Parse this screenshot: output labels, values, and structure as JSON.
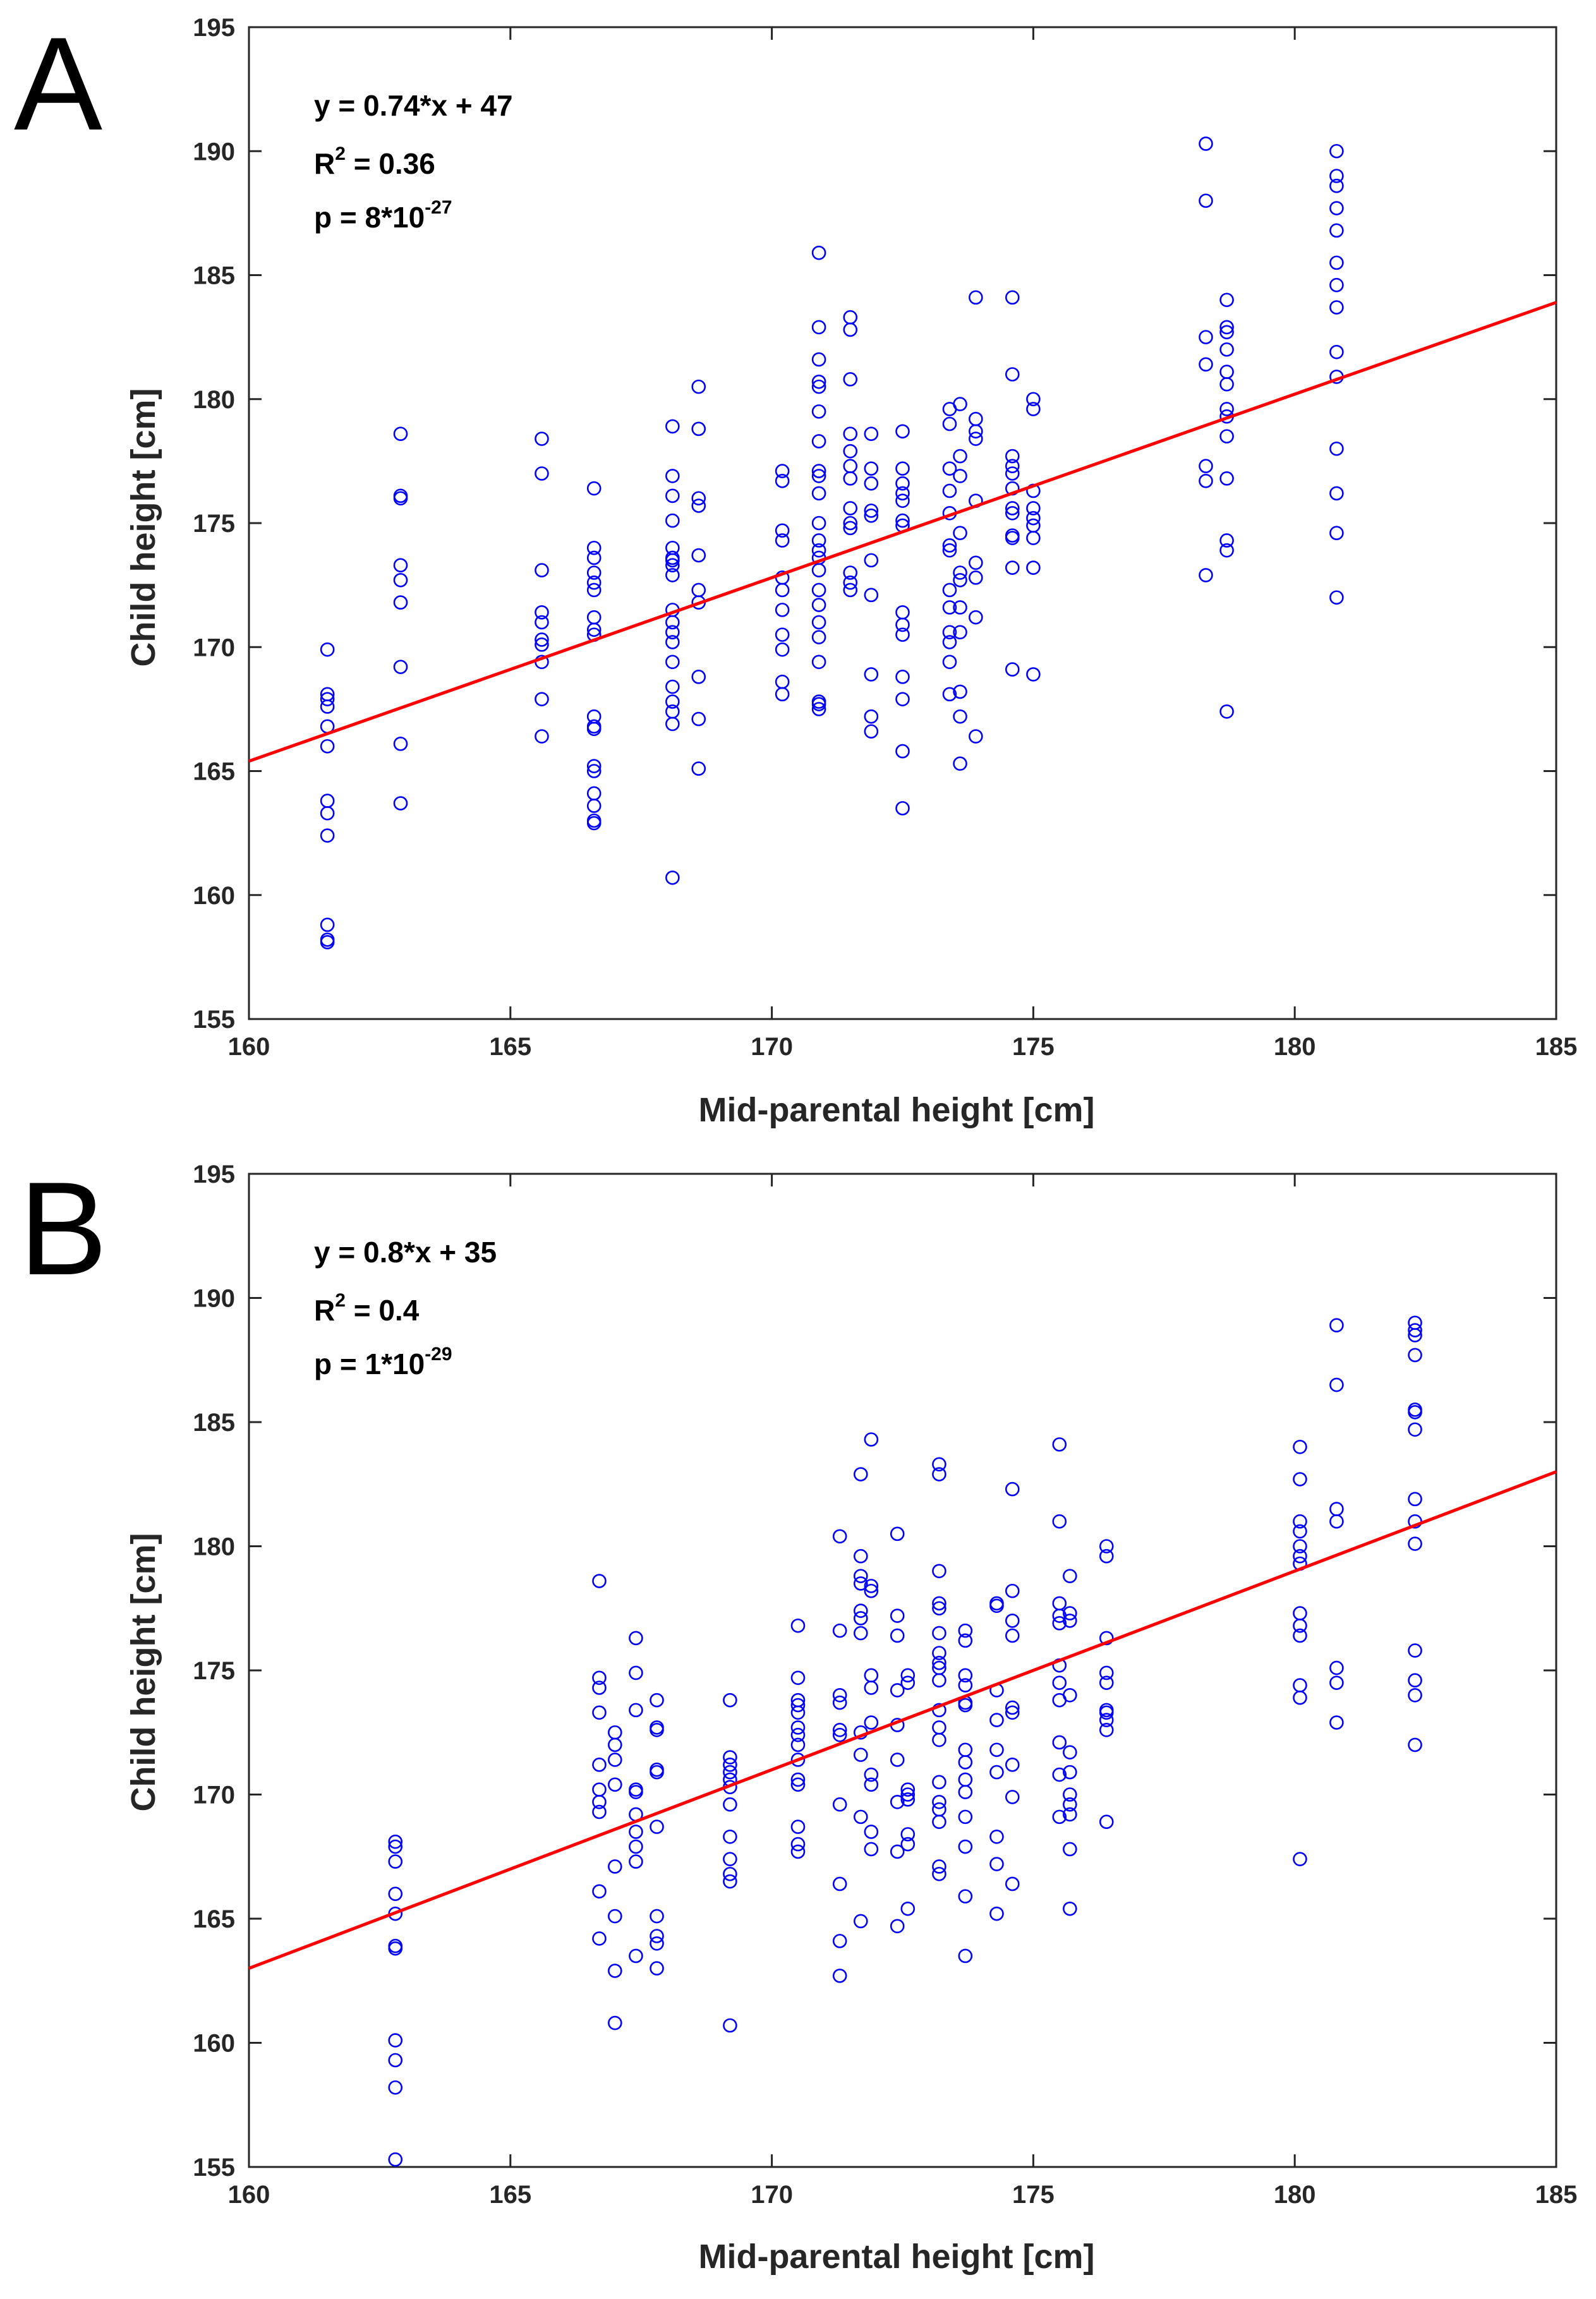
{
  "colors": {
    "points": "#0000ff",
    "fit_line": "#ff0000",
    "axes": "#262626",
    "background": "#ffffff"
  },
  "chart_data": [
    {
      "panel_label": "A",
      "type": "scatter",
      "title": "",
      "xlabel": "Mid-parental height [cm]",
      "ylabel": "Child height [cm]",
      "xlim": [
        160,
        185
      ],
      "ylim": [
        155,
        195
      ],
      "xticks": [
        160,
        165,
        170,
        175,
        180,
        185
      ],
      "yticks": [
        155,
        160,
        165,
        170,
        175,
        180,
        185,
        190,
        195
      ],
      "grid": false,
      "annotations": {
        "equation": "y = 0.74*x + 47",
        "r2_prefix": "R",
        "r2_sup": "2",
        "r2_suffix": " = 0.36",
        "p_prefix": "p =  8*10",
        "p_sup": "-27"
      },
      "fit": {
        "slope": 0.74,
        "intercept": 47
      },
      "series": [
        {
          "x": 161.5,
          "y": [
            169.9,
            168.1,
            167.9,
            167.6,
            166.8,
            166.0,
            163.8,
            163.3,
            162.4,
            158.8,
            158.2,
            158.1
          ]
        },
        {
          "x": 162.9,
          "y": [
            178.6,
            176.1,
            176.0,
            173.3,
            172.7,
            171.8,
            169.2,
            166.1,
            163.7
          ]
        },
        {
          "x": 165.6,
          "y": [
            178.4,
            177.0,
            173.1,
            171.4,
            171.0,
            170.3,
            170.1,
            169.4,
            167.9,
            166.4
          ]
        },
        {
          "x": 166.6,
          "y": [
            176.4,
            174.0,
            173.6,
            173.0,
            172.6,
            172.3,
            171.2,
            170.7,
            170.5,
            167.2,
            166.8,
            166.7,
            165.2,
            165.0,
            164.1,
            163.6,
            163.0,
            162.9
          ]
        },
        {
          "x": 168.1,
          "y": [
            178.9,
            176.9,
            176.1,
            175.1,
            174.0,
            173.6,
            173.5,
            173.3,
            172.9,
            171.5,
            171.0,
            170.6,
            170.2,
            169.4,
            168.4,
            167.8,
            167.4,
            166.9,
            160.7
          ]
        },
        {
          "x": 168.6,
          "y": [
            180.5,
            178.8,
            176.0,
            175.7,
            173.7,
            172.3,
            171.8,
            168.8,
            167.1,
            165.1
          ]
        },
        {
          "x": 170.2,
          "y": [
            177.1,
            176.7,
            174.7,
            174.3,
            172.8,
            172.3,
            171.5,
            170.5,
            169.9,
            168.6,
            168.1
          ]
        },
        {
          "x": 170.9,
          "y": [
            185.9,
            182.9,
            181.6,
            180.7,
            180.5,
            179.5,
            178.3,
            177.1,
            176.9,
            176.2,
            175.0,
            174.3,
            173.9,
            173.6,
            173.1,
            172.3,
            171.7,
            171.0,
            170.4,
            169.4,
            167.8,
            167.7,
            167.5
          ]
        },
        {
          "x": 171.5,
          "y": [
            183.3,
            182.8,
            180.8,
            178.6,
            177.9,
            177.3,
            176.8,
            175.6,
            175.0,
            174.8,
            173.0,
            172.6,
            172.3
          ]
        },
        {
          "x": 171.9,
          "y": [
            178.6,
            177.2,
            176.6,
            175.5,
            175.3,
            173.5,
            172.1,
            168.9,
            167.2,
            166.6
          ]
        },
        {
          "x": 172.5,
          "y": [
            178.7,
            177.2,
            176.6,
            176.2,
            175.9,
            175.1,
            174.9,
            171.4,
            170.9,
            170.5,
            168.8,
            167.9,
            165.8,
            163.5
          ]
        },
        {
          "x": 173.4,
          "y": [
            179.6,
            179.0,
            177.2,
            176.3,
            175.4,
            174.1,
            173.9,
            172.3,
            171.6,
            170.6,
            170.2,
            169.4,
            168.1
          ]
        },
        {
          "x": 173.6,
          "y": [
            179.8,
            177.7,
            176.9,
            174.6,
            173.0,
            172.7,
            171.6,
            170.6,
            168.2,
            167.2,
            165.3
          ]
        },
        {
          "x": 173.9,
          "y": [
            184.1,
            179.2,
            178.7,
            178.4,
            175.9,
            173.4,
            172.8,
            171.2,
            166.4
          ]
        },
        {
          "x": 174.6,
          "y": [
            184.1,
            181.0,
            177.7,
            177.3,
            177.0,
            176.4,
            175.6,
            175.4,
            174.5,
            174.4,
            173.2,
            169.1
          ]
        },
        {
          "x": 175.0,
          "y": [
            180.0,
            179.6,
            176.3,
            175.6,
            175.2,
            174.9,
            174.4,
            173.2,
            168.9
          ]
        },
        {
          "x": 178.3,
          "y": [
            190.3,
            188.0,
            182.5,
            181.4,
            177.3,
            176.7,
            172.9
          ]
        },
        {
          "x": 178.7,
          "y": [
            184.0,
            182.9,
            182.7,
            182.0,
            181.1,
            180.6,
            179.6,
            179.3,
            178.5,
            176.8,
            174.3,
            173.9,
            167.4
          ]
        },
        {
          "x": 180.8,
          "y": [
            190.0,
            189.0,
            188.6,
            187.7,
            186.8,
            185.5,
            184.6,
            183.7,
            181.9,
            180.9,
            178.0,
            176.2,
            174.6,
            172.0
          ]
        }
      ]
    },
    {
      "panel_label": "B",
      "type": "scatter",
      "title": "",
      "xlabel": "Mid-parental height [cm]",
      "ylabel": "Child height [cm]",
      "xlim": [
        160,
        185
      ],
      "ylim": [
        155,
        195
      ],
      "xticks": [
        160,
        165,
        170,
        175,
        180,
        185
      ],
      "yticks": [
        155,
        160,
        165,
        170,
        175,
        180,
        185,
        190,
        195
      ],
      "grid": false,
      "annotations": {
        "equation": "y = 0.8*x + 35",
        "r2_prefix": "R",
        "r2_sup": "2",
        "r2_suffix": " = 0.4",
        "p_prefix": "p =  1*10",
        "p_sup": "-29"
      },
      "fit": {
        "slope": 0.8,
        "intercept": 35
      },
      "series": [
        {
          "x": 162.8,
          "y": [
            168.1,
            167.9,
            167.3,
            166.0,
            165.2,
            163.9,
            163.8,
            160.1,
            159.3,
            158.2,
            155.3
          ]
        },
        {
          "x": 166.7,
          "y": [
            178.6,
            174.7,
            174.3,
            173.3,
            171.2,
            170.2,
            169.7,
            169.3,
            166.1,
            164.2
          ]
        },
        {
          "x": 167.0,
          "y": [
            172.5,
            172.0,
            171.4,
            170.4,
            167.1,
            165.1,
            162.9,
            160.8
          ]
        },
        {
          "x": 167.4,
          "y": [
            176.3,
            174.9,
            173.4,
            170.2,
            170.1,
            169.2,
            168.5,
            167.9,
            167.3,
            163.5
          ]
        },
        {
          "x": 167.8,
          "y": [
            173.8,
            172.7,
            172.6,
            171.0,
            170.9,
            168.7,
            165.1,
            164.3,
            164.0,
            163.0
          ]
        },
        {
          "x": 169.2,
          "y": [
            173.8,
            171.5,
            171.2,
            170.9,
            170.6,
            170.3,
            169.6,
            168.3,
            167.4,
            166.8,
            166.5,
            160.7
          ]
        },
        {
          "x": 170.5,
          "y": [
            176.8,
            174.7,
            173.8,
            173.6,
            173.3,
            172.7,
            172.4,
            172.0,
            171.4,
            170.6,
            170.4,
            168.7,
            168.0,
            167.7
          ]
        },
        {
          "x": 171.3,
          "y": [
            180.4,
            176.6,
            174.0,
            173.7,
            172.6,
            172.4,
            169.6,
            166.4,
            164.1,
            162.7
          ]
        },
        {
          "x": 171.7,
          "y": [
            182.9,
            179.6,
            178.8,
            178.5,
            177.4,
            177.1,
            176.5,
            172.5,
            171.6,
            169.1,
            164.9
          ]
        },
        {
          "x": 171.9,
          "y": [
            184.3,
            178.4,
            178.2,
            174.8,
            174.3,
            172.9,
            170.8,
            170.4,
            168.5,
            167.8
          ]
        },
        {
          "x": 172.4,
          "y": [
            180.5,
            177.2,
            176.4,
            174.2,
            172.8,
            171.4,
            169.7,
            167.7,
            164.7
          ]
        },
        {
          "x": 172.6,
          "y": [
            174.8,
            174.5,
            170.2,
            170.0,
            169.8,
            168.4,
            168.0,
            165.4
          ]
        },
        {
          "x": 173.2,
          "y": [
            183.3,
            182.9,
            179.0,
            177.7,
            177.5,
            176.5,
            175.7,
            175.3,
            175.1,
            174.6,
            173.4,
            172.7,
            172.2,
            170.5,
            169.7,
            169.4,
            168.9,
            167.1,
            166.8
          ]
        },
        {
          "x": 173.7,
          "y": [
            176.6,
            176.2,
            174.8,
            174.4,
            173.7,
            173.6,
            171.8,
            171.3,
            170.6,
            170.1,
            169.1,
            167.9,
            165.9,
            163.5
          ]
        },
        {
          "x": 174.3,
          "y": [
            177.7,
            177.6,
            174.2,
            173.0,
            171.8,
            170.9,
            168.3,
            167.2,
            165.2
          ]
        },
        {
          "x": 174.6,
          "y": [
            182.3,
            178.2,
            177.0,
            176.4,
            173.5,
            173.3,
            171.2,
            169.9,
            166.4
          ]
        },
        {
          "x": 175.5,
          "y": [
            184.1,
            181.0,
            177.7,
            177.2,
            176.9,
            175.2,
            174.5,
            173.8,
            172.1,
            170.8,
            169.1
          ]
        },
        {
          "x": 175.7,
          "y": [
            178.8,
            177.3,
            177.0,
            174.0,
            171.7,
            170.9,
            170.0,
            169.6,
            169.2,
            167.8,
            165.4
          ]
        },
        {
          "x": 176.4,
          "y": [
            180.0,
            179.6,
            176.3,
            174.9,
            174.5,
            173.4,
            173.3,
            173.0,
            172.6,
            168.9
          ]
        },
        {
          "x": 180.1,
          "y": [
            184.0,
            182.7,
            181.0,
            180.6,
            180.0,
            179.6,
            179.3,
            177.3,
            176.8,
            176.4,
            174.4,
            173.9,
            167.4
          ]
        },
        {
          "x": 180.8,
          "y": [
            188.9,
            186.5,
            181.5,
            181.0,
            175.1,
            174.5,
            172.9
          ]
        },
        {
          "x": 182.3,
          "y": [
            189.0,
            188.7,
            188.5,
            187.7,
            185.5,
            185.4,
            184.7,
            181.9,
            181.0,
            180.1,
            175.8,
            174.6,
            174.0,
            172.0
          ]
        }
      ]
    }
  ]
}
